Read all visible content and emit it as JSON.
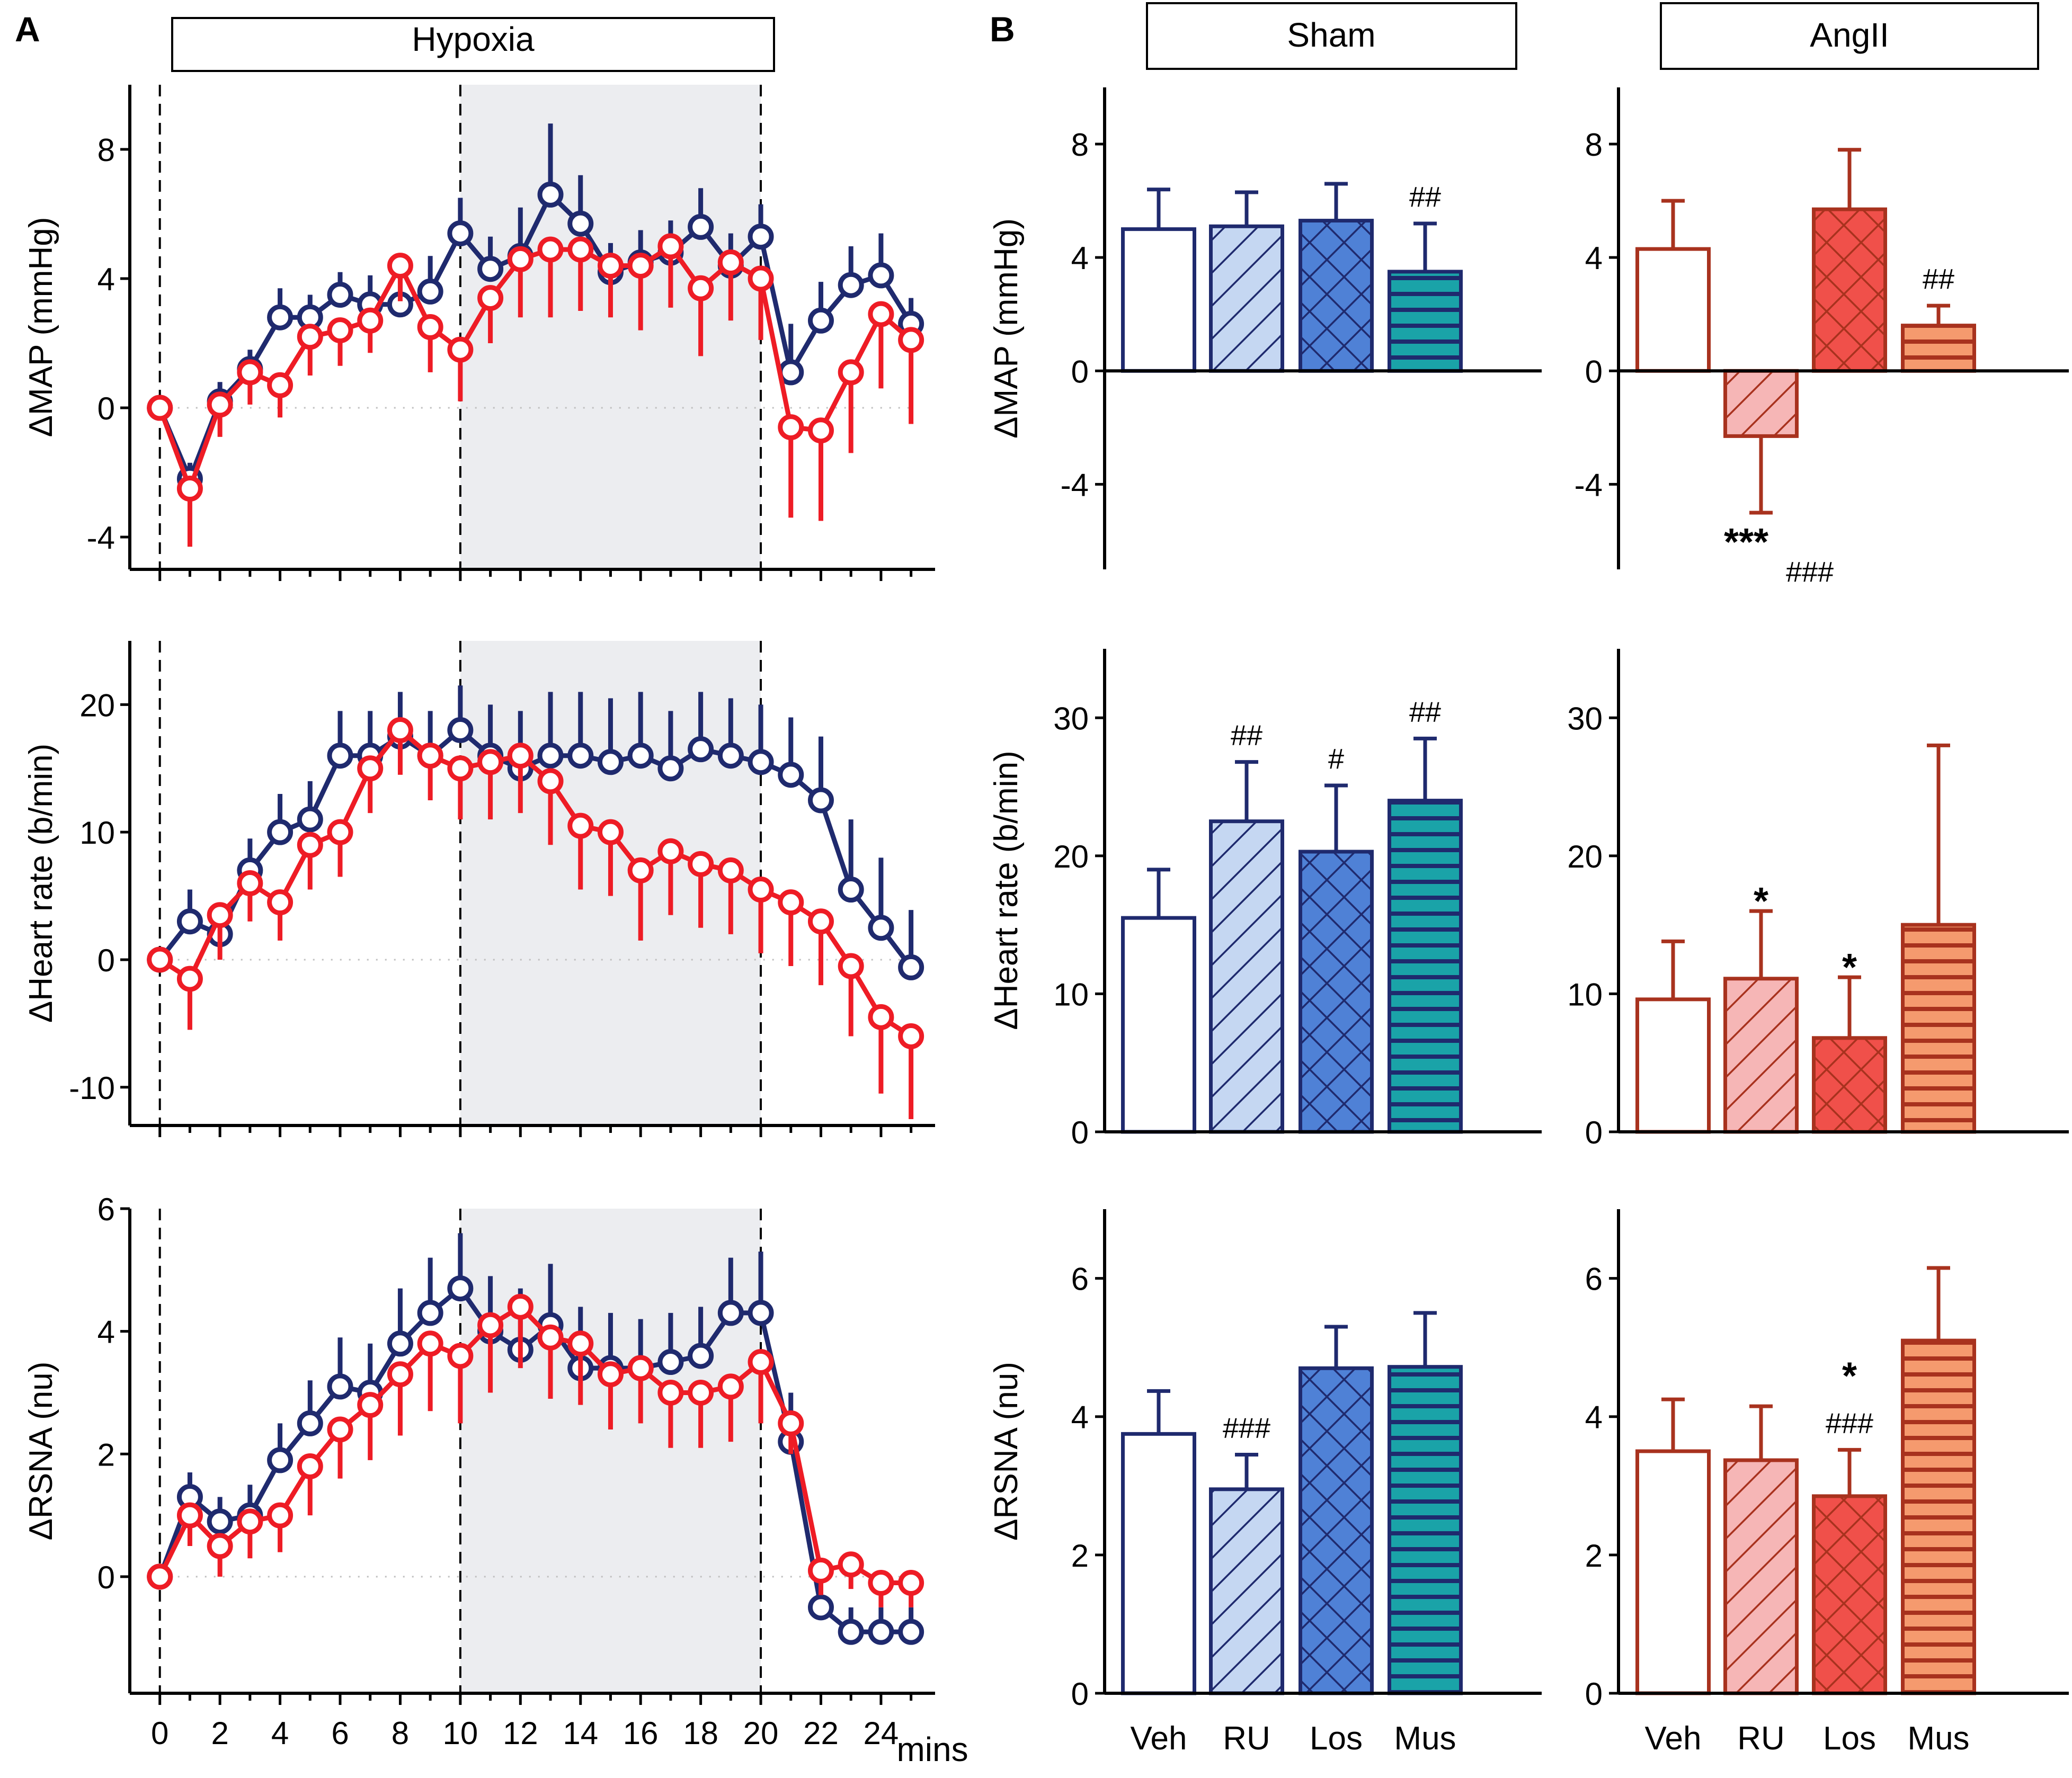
{
  "panel_labels": {
    "a": "A",
    "b": "B"
  },
  "hypoxia_label": "Hypoxia",
  "sham_label": "Sham",
  "angii_label": "AngII",
  "x_unit": "mins",
  "colors": {
    "blue": "#1f2a6e",
    "red": "#ee1c25",
    "darkred": "#a8321e",
    "axis": "#000000",
    "shade": "#ecedf0"
  },
  "chart_data": [
    {
      "type": "line",
      "id": "map_time",
      "title": "Hypoxia",
      "xlabel": "mins",
      "ylabel": "ΔMAP (mmHg)",
      "xlim": [
        -1,
        25.8
      ],
      "ylim": [
        -5,
        10
      ],
      "x_ticks": [
        0,
        2,
        4,
        6,
        8,
        10,
        12,
        14,
        16,
        18,
        20,
        22,
        24
      ],
      "y_ticks": [
        -4,
        0,
        4,
        8
      ],
      "hypoxia_window": [
        10,
        20
      ],
      "series": [
        {
          "name": "Sham",
          "color": "blue",
          "x": [
            0,
            1,
            2,
            3,
            4,
            5,
            6,
            7,
            8,
            9,
            10,
            11,
            12,
            13,
            14,
            15,
            16,
            17,
            18,
            19,
            20,
            21,
            22,
            23,
            24,
            25
          ],
          "y": [
            0,
            -2.2,
            0.2,
            1.2,
            2.8,
            2.8,
            3.5,
            3.2,
            3.2,
            3.6,
            5.4,
            4.3,
            4.7,
            6.6,
            5.7,
            4.2,
            4.5,
            4.8,
            5.6,
            4.4,
            5.3,
            1.1,
            2.7,
            3.8,
            4.1,
            2.6
          ],
          "err": [
            0,
            0.5,
            0.6,
            0.6,
            0.9,
            0.7,
            0.7,
            0.9,
            1.2,
            1.1,
            1.1,
            1.0,
            1.5,
            2.2,
            1.5,
            0.9,
            1.0,
            1.0,
            1.2,
            1.0,
            1.0,
            1.5,
            1.2,
            1.2,
            1.3,
            0.8
          ]
        },
        {
          "name": "AngII",
          "color": "red",
          "x": [
            0,
            1,
            2,
            3,
            4,
            5,
            6,
            7,
            8,
            9,
            10,
            11,
            12,
            13,
            14,
            15,
            16,
            17,
            18,
            19,
            20,
            21,
            22,
            23,
            24,
            25
          ],
          "y": [
            0,
            -2.5,
            0.1,
            1.1,
            0.7,
            2.2,
            2.4,
            2.7,
            4.4,
            2.5,
            1.8,
            3.4,
            4.6,
            4.9,
            4.9,
            4.4,
            4.4,
            5.0,
            3.7,
            4.5,
            4.0,
            -0.6,
            -0.7,
            1.1,
            2.9,
            2.1
          ],
          "err": [
            0,
            1.8,
            1.0,
            1.0,
            1.0,
            1.2,
            1.1,
            1.0,
            1.1,
            1.4,
            1.6,
            1.4,
            1.8,
            2.1,
            1.9,
            1.6,
            2.0,
            1.9,
            2.1,
            1.8,
            1.9,
            2.8,
            2.8,
            2.5,
            2.3,
            2.6
          ]
        }
      ]
    },
    {
      "type": "line",
      "id": "hr_time",
      "xlabel": "mins",
      "ylabel": "ΔHeart rate (b/min)",
      "xlim": [
        -1,
        25.8
      ],
      "ylim": [
        -13,
        25
      ],
      "x_ticks": [
        0,
        2,
        4,
        6,
        8,
        10,
        12,
        14,
        16,
        18,
        20,
        22,
        24
      ],
      "y_ticks": [
        -10,
        0,
        10,
        20
      ],
      "hypoxia_window": [
        10,
        20
      ],
      "series": [
        {
          "name": "Sham",
          "color": "blue",
          "x": [
            0,
            1,
            2,
            3,
            4,
            5,
            6,
            7,
            8,
            9,
            10,
            11,
            12,
            13,
            14,
            15,
            16,
            17,
            18,
            19,
            20,
            21,
            22,
            23,
            24,
            25
          ],
          "y": [
            0,
            3.0,
            2.0,
            7.0,
            10.0,
            11.0,
            16.0,
            16.0,
            17.5,
            16.0,
            18.0,
            16.0,
            15.0,
            16.0,
            16.0,
            15.5,
            16.0,
            15.0,
            16.5,
            16.0,
            15.5,
            14.5,
            12.5,
            5.5,
            2.5,
            -0.6
          ],
          "err": [
            0,
            2.5,
            2.5,
            2.5,
            3.0,
            3.0,
            3.5,
            3.5,
            3.5,
            3.5,
            3.5,
            4.0,
            4.5,
            5.0,
            5.0,
            5.0,
            5.0,
            4.5,
            4.5,
            4.5,
            4.5,
            4.5,
            5.0,
            5.5,
            5.5,
            4.5
          ]
        },
        {
          "name": "AngII",
          "color": "red",
          "x": [
            0,
            1,
            2,
            3,
            4,
            5,
            6,
            7,
            8,
            9,
            10,
            11,
            12,
            13,
            14,
            15,
            16,
            17,
            18,
            19,
            20,
            21,
            22,
            23,
            24,
            25
          ],
          "y": [
            0,
            -1.5,
            3.5,
            6.0,
            4.5,
            9.0,
            10.0,
            15.0,
            18.0,
            16.0,
            15.0,
            15.5,
            16.0,
            14.0,
            10.5,
            10.0,
            7.0,
            8.5,
            7.5,
            7.0,
            5.5,
            4.5,
            3.0,
            -0.5,
            -4.5,
            -6.0
          ],
          "err": [
            0,
            4.0,
            3.5,
            3.0,
            3.0,
            3.5,
            3.5,
            3.5,
            3.5,
            3.5,
            4.0,
            4.5,
            4.5,
            5.0,
            5.0,
            5.0,
            5.5,
            5.0,
            5.0,
            5.0,
            5.0,
            5.0,
            5.0,
            5.5,
            6.0,
            6.5
          ]
        }
      ]
    },
    {
      "type": "line",
      "id": "rsna_time",
      "xlabel": "mins",
      "ylabel": "ΔRSNA (nu)",
      "xlim": [
        -1,
        25.8
      ],
      "ylim": [
        -1.9,
        6
      ],
      "x_ticks": [
        0,
        2,
        4,
        6,
        8,
        10,
        12,
        14,
        16,
        18,
        20,
        22,
        24
      ],
      "y_ticks": [
        0,
        2,
        4,
        6
      ],
      "hypoxia_window": [
        10,
        20
      ],
      "series": [
        {
          "name": "Sham",
          "color": "blue",
          "x": [
            0,
            1,
            2,
            3,
            4,
            5,
            6,
            7,
            8,
            9,
            10,
            11,
            12,
            13,
            14,
            15,
            16,
            17,
            18,
            19,
            20,
            21,
            22,
            23,
            24,
            25
          ],
          "y": [
            0,
            1.3,
            0.9,
            1.0,
            1.9,
            2.5,
            3.1,
            3.0,
            3.8,
            4.3,
            4.7,
            4.0,
            3.7,
            4.1,
            3.4,
            3.4,
            3.4,
            3.5,
            3.6,
            4.3,
            4.3,
            2.2,
            -0.5,
            -0.9,
            -0.9,
            -0.9
          ],
          "err": [
            0,
            0.4,
            0.4,
            0.5,
            0.6,
            0.7,
            0.8,
            0.8,
            0.9,
            0.9,
            0.9,
            0.9,
            1.0,
            1.0,
            1.0,
            0.9,
            0.8,
            0.8,
            0.8,
            0.9,
            1.0,
            0.8,
            0.4,
            0.4,
            0.4,
            0.4
          ]
        },
        {
          "name": "AngII",
          "color": "red",
          "x": [
            0,
            1,
            2,
            3,
            4,
            5,
            6,
            7,
            8,
            9,
            10,
            11,
            12,
            13,
            14,
            15,
            16,
            17,
            18,
            19,
            20,
            21,
            22,
            23,
            24,
            25
          ],
          "y": [
            0,
            1.0,
            0.5,
            0.9,
            1.0,
            1.8,
            2.4,
            2.8,
            3.3,
            3.8,
            3.6,
            4.1,
            4.4,
            3.9,
            3.8,
            3.3,
            3.4,
            3.0,
            3.0,
            3.1,
            3.5,
            2.5,
            0.1,
            0.2,
            -0.1,
            -0.1
          ],
          "err": [
            0,
            0.5,
            0.5,
            0.6,
            0.6,
            0.8,
            0.8,
            0.9,
            1.0,
            1.1,
            1.1,
            1.1,
            1.0,
            1.0,
            1.0,
            0.9,
            0.9,
            0.9,
            0.9,
            0.9,
            1.0,
            0.5,
            0.4,
            0.4,
            0.4,
            0.4
          ]
        }
      ]
    },
    {
      "type": "bar",
      "id": "map_sham",
      "title": "Sham",
      "ylabel": "ΔMAP (mmHg)",
      "ylim": [
        -7,
        10
      ],
      "y_ticks": [
        -4,
        0,
        4,
        8
      ],
      "categories": [
        "Veh",
        "RU",
        "Los",
        "Mus"
      ],
      "values": [
        5.0,
        5.1,
        5.3,
        3.5
      ],
      "err": [
        1.4,
        1.2,
        1.3,
        1.7
      ],
      "annotations": [
        {
          "bar": 3,
          "text": "##"
        }
      ]
    },
    {
      "type": "bar",
      "id": "map_angii",
      "title": "AngII",
      "ylim": [
        -7,
        10
      ],
      "y_ticks": [
        -4,
        0,
        4,
        8
      ],
      "categories": [
        "Veh",
        "RU",
        "Los",
        "Mus"
      ],
      "values": [
        4.3,
        -2.3,
        5.7,
        1.6
      ],
      "err": [
        1.7,
        2.7,
        2.1,
        0.7
      ],
      "annotations": [
        {
          "bar": 3,
          "text": "##"
        },
        {
          "bar": 1,
          "text": "***",
          "pos": "below"
        },
        {
          "bar": 1,
          "text": "###",
          "pos": "below2"
        }
      ]
    },
    {
      "type": "bar",
      "id": "hr_sham",
      "ylabel": "ΔHeart rate (b/min)",
      "ylim": [
        0,
        35
      ],
      "y_ticks": [
        0,
        10,
        20,
        30
      ],
      "categories": [
        "Veh",
        "RU",
        "Los",
        "Mus"
      ],
      "values": [
        15.5,
        22.5,
        20.3,
        24.0
      ],
      "err": [
        3.5,
        4.3,
        4.8,
        4.5
      ],
      "annotations": [
        {
          "bar": 1,
          "text": "##"
        },
        {
          "bar": 2,
          "text": "#"
        },
        {
          "bar": 3,
          "text": "##"
        }
      ]
    },
    {
      "type": "bar",
      "id": "hr_angii",
      "ylim": [
        0,
        35
      ],
      "y_ticks": [
        0,
        10,
        20,
        30
      ],
      "categories": [
        "Veh",
        "RU",
        "Los",
        "Mus"
      ],
      "values": [
        9.6,
        11.1,
        6.8,
        15.0
      ],
      "err": [
        4.2,
        4.9,
        4.4,
        13.0
      ],
      "annotations": [
        {
          "bar": 1,
          "text": "*"
        },
        {
          "bar": 2,
          "text": "*"
        }
      ]
    },
    {
      "type": "bar",
      "id": "rsna_sham",
      "ylabel": "ΔRSNA (nu)",
      "ylim": [
        0,
        7
      ],
      "y_ticks": [
        0,
        2,
        4,
        6
      ],
      "categories": [
        "Veh",
        "RU",
        "Los",
        "Mus"
      ],
      "values": [
        3.75,
        2.95,
        4.7,
        4.72
      ],
      "err": [
        0.62,
        0.5,
        0.6,
        0.78
      ],
      "annotations": [
        {
          "bar": 1,
          "text": "###"
        }
      ]
    },
    {
      "type": "bar",
      "id": "rsna_angii",
      "ylim": [
        0,
        7
      ],
      "y_ticks": [
        0,
        2,
        4,
        6
      ],
      "categories": [
        "Veh",
        "RU",
        "Los",
        "Mus"
      ],
      "values": [
        3.5,
        3.37,
        2.85,
        5.1
      ],
      "err": [
        0.75,
        0.78,
        0.67,
        1.05
      ],
      "annotations": [
        {
          "bar": 2,
          "text": "###"
        },
        {
          "bar": 2,
          "text": "*",
          "pos": "above2"
        }
      ]
    }
  ]
}
